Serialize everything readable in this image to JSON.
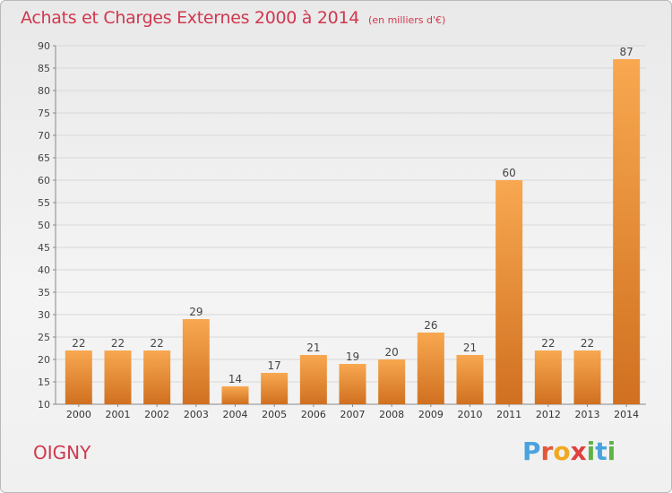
{
  "title": "Achats et Charges Externes 2000 à 2014",
  "subtitle": "(en milliers d'€)",
  "commune": "OIGNY",
  "logo": {
    "text": "Proxiti",
    "letters": [
      "P",
      "r",
      "o",
      "x",
      "i",
      "t",
      "i"
    ]
  },
  "colors": {
    "title": "#d0384f",
    "bar_light": "#f8a850",
    "bar_dark": "#d07020",
    "grid": "#d8d8d8"
  },
  "chart_data": {
    "type": "bar",
    "title": "Achats et Charges Externes 2000 à 2014",
    "categories": [
      "2000",
      "2001",
      "2002",
      "2003",
      "2004",
      "2005",
      "2006",
      "2007",
      "2008",
      "2009",
      "2010",
      "2011",
      "2012",
      "2013",
      "2014"
    ],
    "values": [
      22,
      22,
      22,
      29,
      14,
      17,
      21,
      19,
      20,
      26,
      21,
      60,
      22,
      22,
      87
    ],
    "ylim": [
      10,
      90
    ],
    "yticks": [
      10,
      15,
      20,
      25,
      30,
      35,
      40,
      45,
      50,
      55,
      60,
      65,
      70,
      75,
      80,
      85,
      90
    ],
    "grid": true
  }
}
